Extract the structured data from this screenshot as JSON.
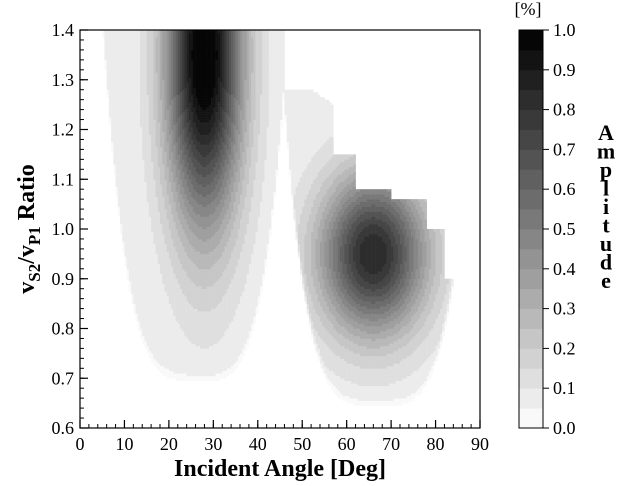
{
  "chart_data": {
    "type": "heatmap",
    "title": "",
    "xlabel": "Incident Angle [Deg]",
    "ylabel": {
      "v1": "v",
      "sub1": "S2",
      "slash": "/v",
      "sub2": "P1",
      "rest": " Ratio"
    },
    "xlim": [
      0,
      90
    ],
    "ylim": [
      0.6,
      1.4
    ],
    "x_ticks": [
      "0",
      "10",
      "20",
      "30",
      "40",
      "50",
      "60",
      "70",
      "80",
      "90"
    ],
    "y_ticks": [
      "0.6",
      "0.7",
      "0.8",
      "0.9",
      "1.0",
      "1.1",
      "1.2",
      "1.3",
      "1.4"
    ],
    "colorbar": {
      "label": "Amplitude",
      "unit": "[%]",
      "range": [
        0.0,
        1.0
      ],
      "levels": 20,
      "ticks": [
        "0.0",
        "0.1",
        "0.2",
        "0.3",
        "0.4",
        "0.5",
        "0.6",
        "0.7",
        "0.8",
        "0.9",
        "1.0"
      ],
      "colormap": "white-to-black grayscale"
    },
    "regions": [
      {
        "name": "",
        "peak": {
          "x": 28,
          "y": 1.35,
          "amplitude": 1.0
        },
        "extent_note": "lobe spanning ~5-46 deg incident angle, ratio 0.68-1.4"
      },
      {
        "name": "",
        "peak": {
          "x": 66,
          "y": 0.95,
          "amplitude": 0.8
        },
        "extent_note": "lobe spanning ~46-88 deg incident angle, ratio 0.63-1.28"
      }
    ],
    "grid": false,
    "legend": "colorbar-right"
  }
}
